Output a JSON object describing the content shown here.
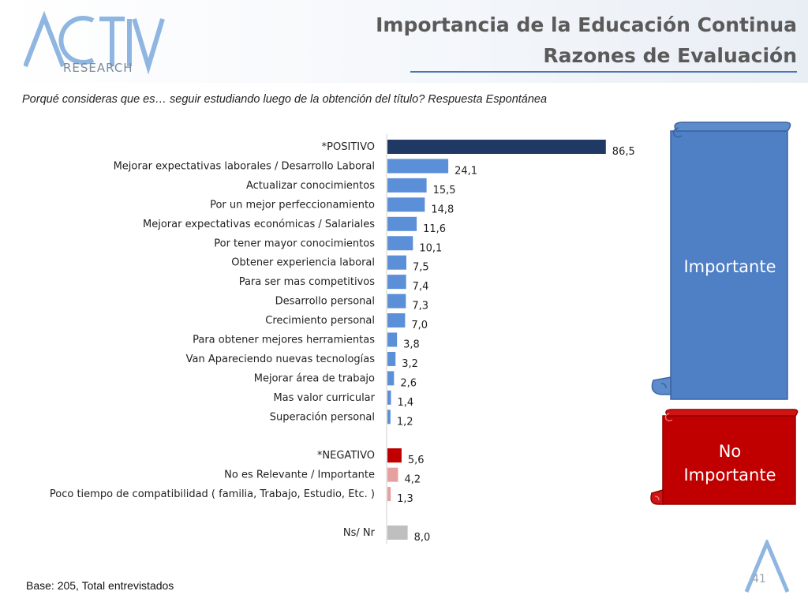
{
  "header": {
    "logo_word": "RESEARCH",
    "title_line1": "Importancia de la Educación Continua",
    "title_line2": "Razones de Evaluación"
  },
  "question": "Porqué consideras que es… seguir estudiando luego de la obtención del título? Respuesta Espontánea",
  "callouts": {
    "important": "Importante",
    "not_important_line1": "No",
    "not_important_line2": "Importante"
  },
  "footer": {
    "base": "Base: 205, Total entrevistados",
    "page_number": "41"
  },
  "colors": {
    "positive_total": "#1f3864",
    "positive_item": "#5b8fd8",
    "negative_total": "#c00000",
    "negative_item": "#e6a0a0",
    "no_answer": "#bfbfbf",
    "scroll_blue": "#4f7fc4",
    "scroll_red": "#c00000"
  },
  "chart_data": {
    "type": "bar",
    "orientation": "horizontal",
    "xlim": [
      0,
      100
    ],
    "grid": false,
    "legend": "none",
    "categories": [
      "*POSITIVO",
      "Mejorar expectativas laborales / Desarrollo Laboral",
      "Actualizar conocimientos",
      "Por un mejor perfeccionamiento",
      "Mejorar expectativas económicas / Salariales",
      "Por tener mayor conocimientos",
      "Obtener experiencia laboral",
      "Para ser mas competitivos",
      "Desarrollo personal",
      "Crecimiento personal",
      "Para obtener mejores herramientas",
      "Van Apareciendo nuevas tecnologías",
      "Mejorar área de trabajo",
      "Mas valor  curricular",
      "Superación personal",
      "",
      "*NEGATIVO",
      "No es Relevante / Importante",
      "Poco tiempo de compatibilidad ( familia, Trabajo, Estudio, Etc. )",
      "",
      "Ns/ Nr"
    ],
    "values": [
      86.5,
      24.1,
      15.5,
      14.8,
      11.6,
      10.1,
      7.5,
      7.4,
      7.3,
      7.0,
      3.8,
      3.2,
      2.6,
      1.4,
      1.2,
      null,
      5.6,
      4.2,
      1.3,
      null,
      8.0
    ],
    "value_labels": [
      "86,5",
      "24,1",
      "15,5",
      "14,8",
      "11,6",
      "10,1",
      "7,5",
      "7,4",
      "7,3",
      "7,0",
      "3,8",
      "3,2",
      "2,6",
      "1,4",
      "1,2",
      "",
      "5,6",
      "4,2",
      "1,3",
      "",
      "8,0"
    ],
    "groups": [
      "positive_total",
      "positive_item",
      "positive_item",
      "positive_item",
      "positive_item",
      "positive_item",
      "positive_item",
      "positive_item",
      "positive_item",
      "positive_item",
      "positive_item",
      "positive_item",
      "positive_item",
      "positive_item",
      "positive_item",
      "",
      "negative_total",
      "negative_item",
      "negative_item",
      "",
      "no_answer"
    ]
  }
}
